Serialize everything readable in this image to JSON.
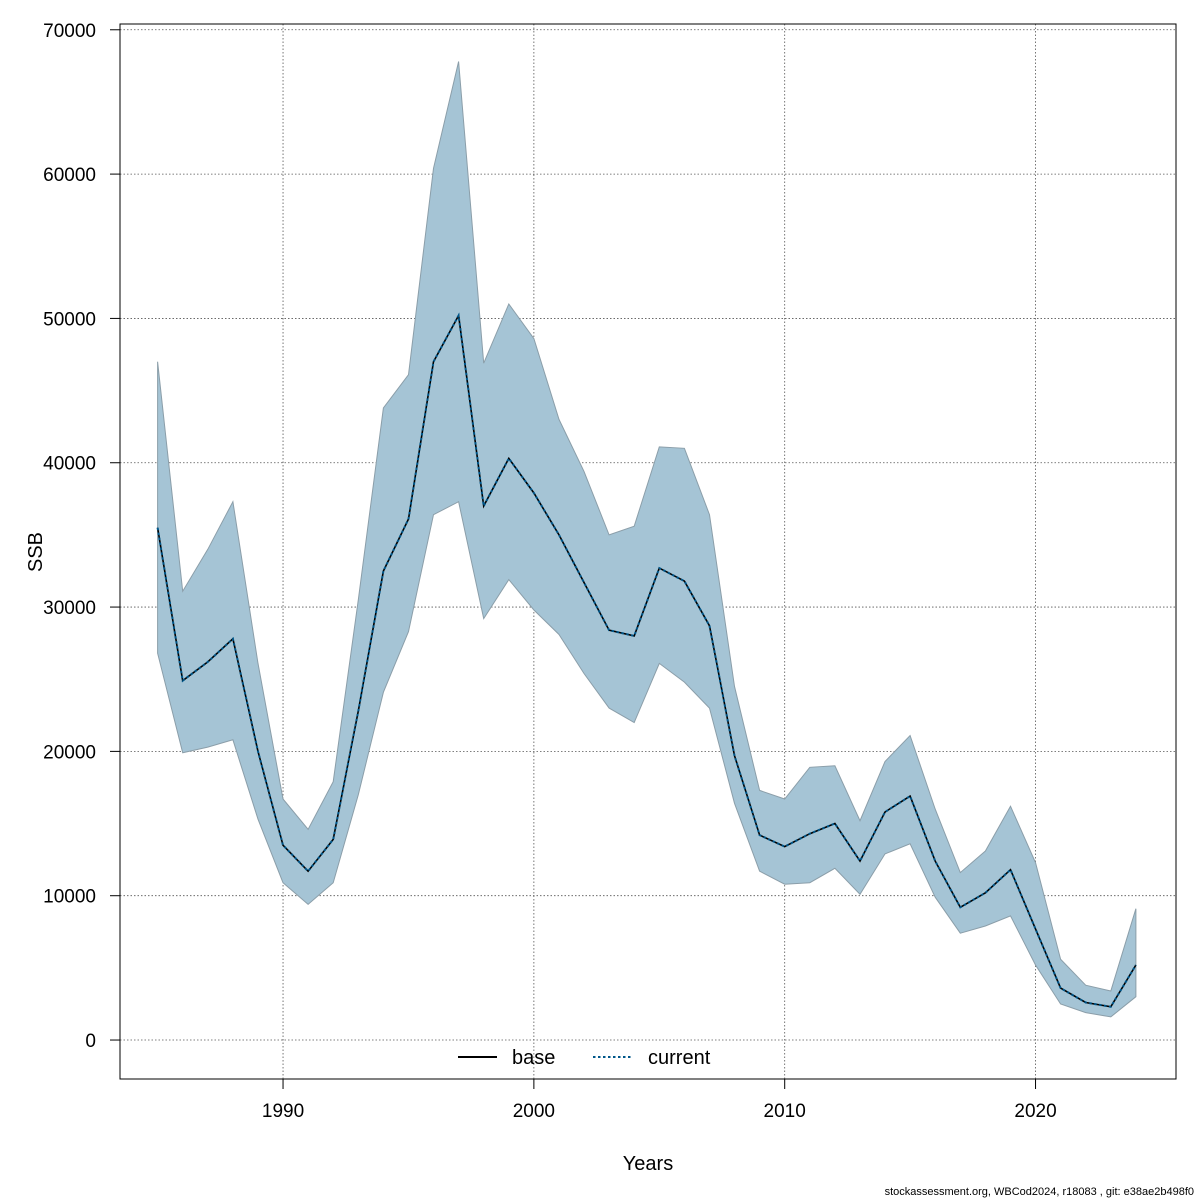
{
  "chart_data": {
    "type": "area",
    "xlabel": "Years",
    "ylabel": "SSB",
    "xlim": [
      1983.5,
      2025.6
    ],
    "ylim": [
      -2700,
      70400
    ],
    "x_ticks": [
      1990,
      2000,
      2010,
      2020
    ],
    "y_ticks": [
      0,
      10000,
      20000,
      30000,
      40000,
      50000,
      60000,
      70000
    ],
    "grid": true,
    "legend": {
      "placement": "bottom-center",
      "entries": [
        {
          "label": "base",
          "style": "solid",
          "color": "#000000"
        },
        {
          "label": "current",
          "style": "dotted",
          "color": "#00578a"
        }
      ]
    },
    "colors": {
      "band_fill": "#a5c4d5",
      "band_stroke": "#8b9ea9",
      "line": "#000000",
      "grid": "#555555"
    },
    "x": [
      1985,
      1986,
      1987,
      1988,
      1989,
      1990,
      1991,
      1992,
      1993,
      1994,
      1995,
      1996,
      1997,
      1998,
      1999,
      2000,
      2001,
      2002,
      2003,
      2004,
      2005,
      2006,
      2007,
      2008,
      2009,
      2010,
      2011,
      2012,
      2013,
      2014,
      2015,
      2016,
      2017,
      2018,
      2019,
      2020,
      2021,
      2022,
      2023,
      2024
    ],
    "series": [
      {
        "name": "current",
        "values": [
          35500,
          24900,
          26200,
          27800,
          20000,
          13500,
          11700,
          13900,
          22800,
          32500,
          36100,
          47000,
          50200,
          37000,
          40300,
          37900,
          35000,
          31700,
          28400,
          28000,
          32700,
          31800,
          28700,
          19700,
          14200,
          13400,
          14300,
          15000,
          12400,
          15800,
          16900,
          12400,
          9200,
          10200,
          11800,
          7700,
          3600,
          2600,
          2300,
          5200
        ]
      },
      {
        "name": "upper",
        "values": [
          47000,
          31100,
          34000,
          37300,
          26100,
          16700,
          14600,
          17900,
          30500,
          43800,
          46100,
          60400,
          67800,
          46900,
          51000,
          48600,
          43000,
          39400,
          35000,
          35600,
          41100,
          41000,
          36400,
          24500,
          17300,
          16700,
          18900,
          19000,
          15200,
          19300,
          21100,
          16000,
          11600,
          13100,
          16200,
          12300,
          5600,
          3800,
          3400,
          9100
        ]
      },
      {
        "name": "lower",
        "values": [
          26800,
          19900,
          20300,
          20800,
          15300,
          10900,
          9400,
          10900,
          17000,
          24100,
          28300,
          36400,
          37300,
          29200,
          31900,
          29800,
          28100,
          25400,
          23000,
          22000,
          26100,
          24800,
          23000,
          16400,
          11700,
          10800,
          10900,
          11900,
          10100,
          12900,
          13600,
          9900,
          7400,
          7900,
          8600,
          5200,
          2500,
          1900,
          1600,
          3000
        ]
      }
    ]
  },
  "footer": "stockassessment.org, WBCod2024, r18083 , git: e38ae2b498f0"
}
